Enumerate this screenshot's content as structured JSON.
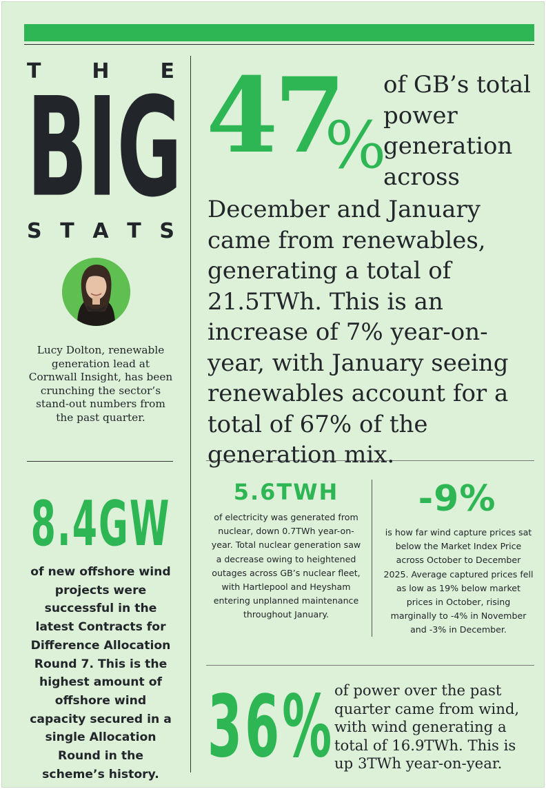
{
  "title": {
    "the": [
      "T",
      "H",
      "E"
    ],
    "big": [
      "B",
      "I",
      "G"
    ],
    "stats": [
      "S",
      "T",
      "A",
      "T",
      "S"
    ]
  },
  "author": {
    "bio": "Lucy Dolton, renewable generation lead at Cornwall Insight, has been crunching the sector’s stand-out numbers from the past quarter."
  },
  "stat_main": {
    "value": "47",
    "unit": "%",
    "side_text": "of GB’s total power generation across",
    "main_text": "December and January came from renewables, generating a total of 21.5TWh. This is an increase of 7% year-on-year, with January seeing renewables account for a total of 67% of the generation mix."
  },
  "stat_offshore": {
    "value": "8.4GW",
    "text": "of new offshore wind projects were successful in the latest Contracts for Difference Allocation Round 7. This is the highest amount of offshore wind capacity secured in a single Allocation Round in the scheme’s history."
  },
  "stat_nuclear": {
    "value": "5.6TWH",
    "text": "of electricity was generated from nuclear, down 0.7TWh year-on-year. Total nuclear generation saw a decrease owing to heightened outages across GB’s nuclear fleet, with Hartlepool and Heysham entering unplanned maintenance throughout January."
  },
  "stat_capture": {
    "value": "-9%",
    "text": "is how far wind capture prices sat below the Market Index Price across October to December 2025. Average captured prices fell as low as 19% below market prices in October, rising marginally to -4% in November and -3% in December."
  },
  "stat_wind": {
    "value": "36%",
    "text": "of power over the past quarter came from wind, with wind generating a total of 16.9TWh. This is up 3TWh year-on-year."
  },
  "colors": {
    "background": "#ddf0d8",
    "accent": "#2eb654",
    "ink": "#22262b"
  }
}
